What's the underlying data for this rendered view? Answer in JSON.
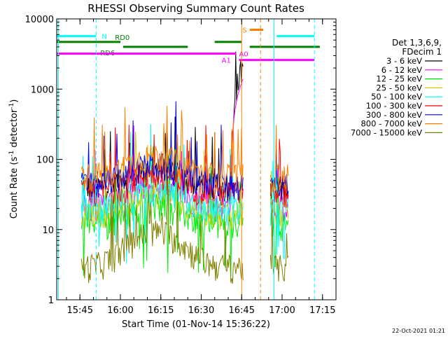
{
  "chart_data": {
    "type": "line",
    "title": "RHESSI Observing Summary Count Rates",
    "xlabel": "Start Time (01-Nov-14 15:36:22)",
    "ylabel": "Count Rate (s",
    "ylabel_sup": "-1",
    "ylabel_tail": " detector",
    "ylabel_tail_sup": "-1",
    "ylabel_close": ")",
    "yscale": "log",
    "xlim": [
      "15:36:22",
      "17:20:00"
    ],
    "ylim": [
      1,
      10000
    ],
    "x_ticks": [
      "15:45",
      "16:00",
      "16:15",
      "16:30",
      "16:45",
      "17:00",
      "17:15"
    ],
    "y_ticks": [
      "1",
      "10",
      "100",
      "1000",
      "10000"
    ],
    "footer_date": "22-Oct-2021 01:21",
    "legend_header": [
      "Det 1,3,6,9,",
      "FDecim 1"
    ],
    "series": [
      {
        "name": "3 - 6 keV",
        "color": "#000000",
        "base": 40
      },
      {
        "name": "6 - 12 keV",
        "color": "#ff00ff",
        "base": 22
      },
      {
        "name": "12 - 25 keV",
        "color": "#00ee00",
        "base": 12
      },
      {
        "name": "25 - 50 keV",
        "color": "#cccc00",
        "base": 18
      },
      {
        "name": "50 - 100 keV",
        "color": "#00ffff",
        "base": 20
      },
      {
        "name": "100 - 300 keV",
        "color": "#ff0000",
        "base": 35
      },
      {
        "name": "300 - 800 keV",
        "color": "#0000ee",
        "base": 45
      },
      {
        "name": "800 - 7000 keV",
        "color": "#ff8000",
        "base": 60
      },
      {
        "name": "7000 - 15000 keV",
        "color": "#808000",
        "base": 3
      }
    ],
    "flag_bars": [
      {
        "label": "N",
        "color": "#00ffff",
        "level": 5700,
        "segments": [
          [
            "15:36:22",
            "15:51:00"
          ],
          [
            "16:58:00",
            "17:12:00"
          ]
        ]
      },
      {
        "label": "RD0",
        "color": "#008000",
        "level": 4700,
        "segments": [
          [
            "15:36:22",
            "16:00:00"
          ],
          [
            "16:35:00",
            "16:45:00"
          ]
        ]
      },
      {
        "label": "RD6",
        "color": "#008000",
        "level": 4000,
        "segments": [
          [
            "16:01:00",
            "16:25:00"
          ],
          [
            "16:48:00",
            "17:14:00"
          ]
        ]
      },
      {
        "label": "A0",
        "color": "#ff00ff",
        "level": 3200,
        "segments": [
          [
            "15:36:22",
            "16:43:00"
          ]
        ]
      },
      {
        "label": "A1",
        "color": "#ff00ff",
        "level": 2600,
        "segments": [
          [
            "16:44:00",
            "17:12:00"
          ]
        ]
      },
      {
        "label": "S",
        "color": "#ff8000",
        "level": 7000,
        "segments": [
          [
            "16:48:00",
            "16:53:00"
          ]
        ]
      }
    ],
    "vertical_markers": [
      {
        "time": "15:37:00",
        "color": "#00ffff",
        "style": "solid"
      },
      {
        "time": "15:51:00",
        "color": "#00ffff",
        "style": "dashed"
      },
      {
        "time": "16:45:00",
        "color": "#ff8000",
        "style": "solid"
      },
      {
        "time": "16:52:00",
        "color": "#ff8000",
        "style": "dashed"
      },
      {
        "time": "16:57:00",
        "color": "#00ffff",
        "style": "solid"
      },
      {
        "time": "17:12:00",
        "color": "#00ffff",
        "style": "dashed"
      }
    ],
    "data_gap": [
      "16:45:30",
      "16:55:30"
    ]
  }
}
